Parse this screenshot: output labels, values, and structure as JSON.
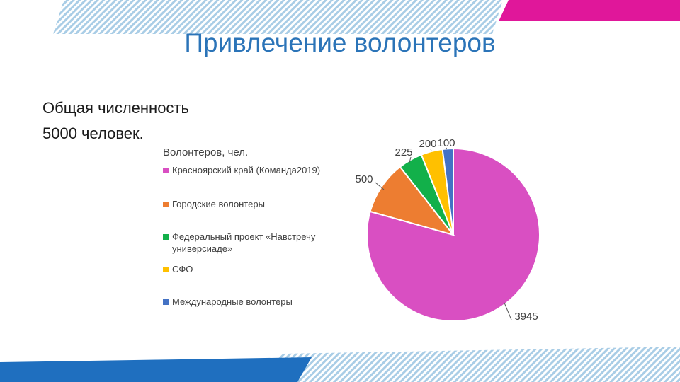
{
  "slide": {
    "title": "Привлечение волонтеров",
    "line1": "Общая численность",
    "line2": "5000 человек."
  },
  "colors": {
    "title": "#2b74b8",
    "decor_blue": "#1f6fbf",
    "decor_light": "#a9cde6",
    "decor_pink": "#e0179a"
  },
  "chart_data": {
    "type": "pie",
    "title": "Волонтеров, чел.",
    "legend_position": "left",
    "categories": [
      "Красноярский край (Команда2019)",
      "Городские волонтеры",
      "Федеральный проект «Навстречу универсиаде»",
      "СФО",
      "Международные волонтеры"
    ],
    "values": [
      3945,
      500,
      225,
      200,
      100
    ],
    "data_labels": [
      "3945",
      "500",
      "225",
      "200",
      "100"
    ],
    "colors": [
      "#d94fc2",
      "#ed7d31",
      "#12b04a",
      "#ffc000",
      "#4472c4"
    ]
  }
}
